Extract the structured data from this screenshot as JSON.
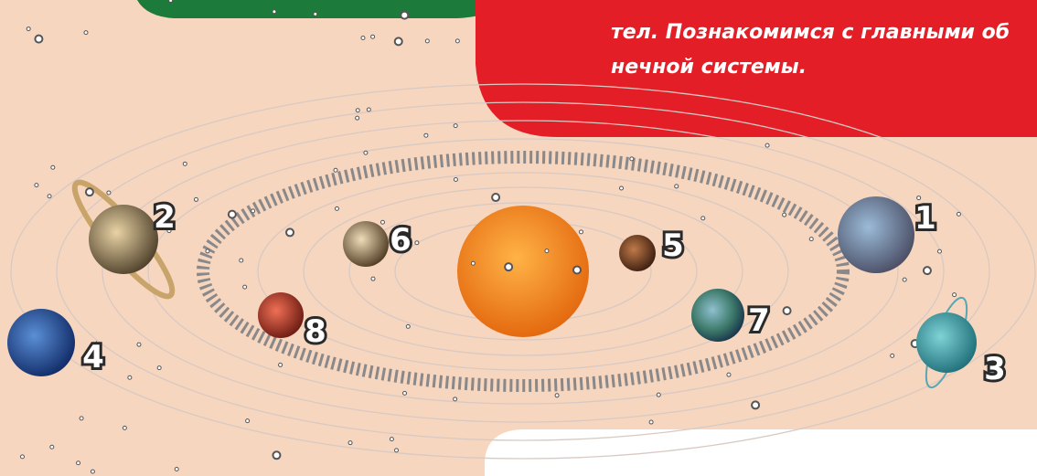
{
  "caption": {
    "lines": [
      "тел. Познакомимся с главными об",
      "нечной системы."
    ]
  },
  "planets": [
    {
      "label": "1"
    },
    {
      "label": "2"
    },
    {
      "label": "3"
    },
    {
      "label": "4"
    },
    {
      "label": "5"
    },
    {
      "label": "6"
    },
    {
      "label": "7"
    },
    {
      "label": "8"
    }
  ]
}
